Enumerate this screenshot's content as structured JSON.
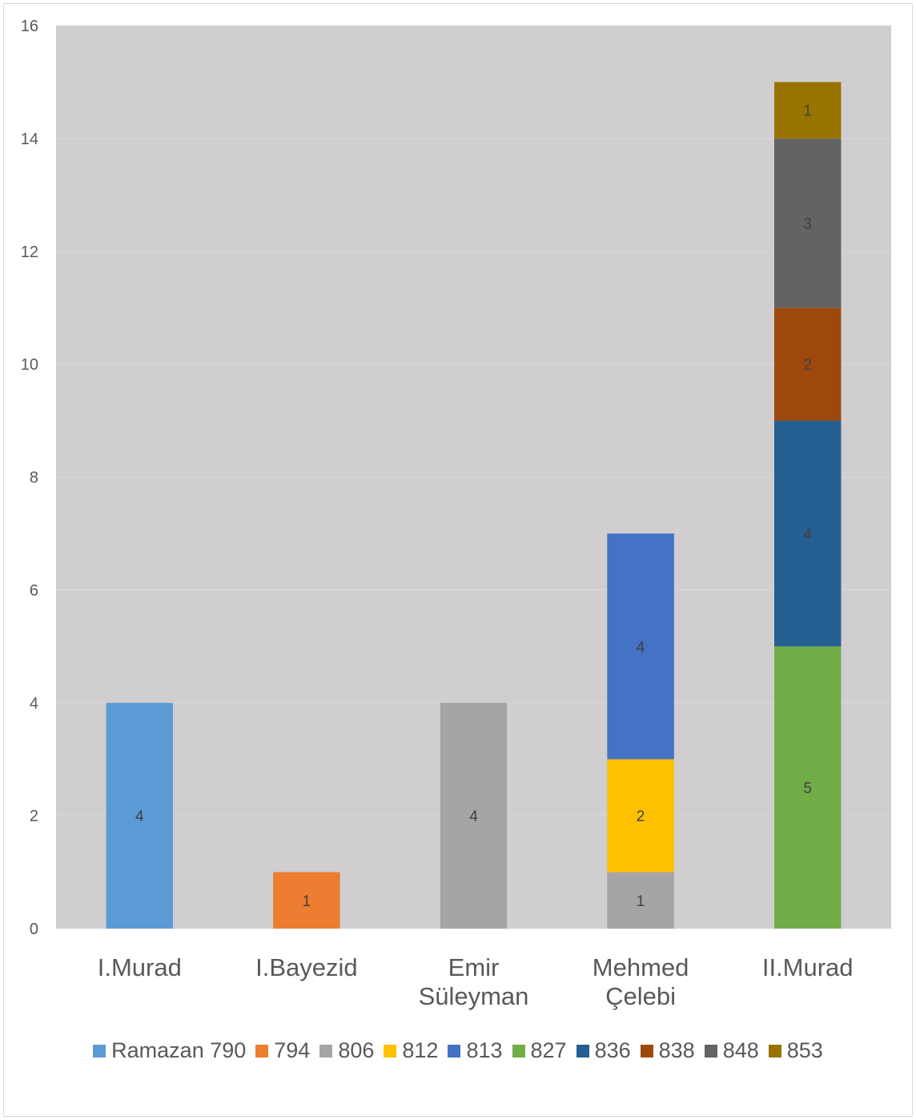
{
  "chart_data": {
    "type": "bar",
    "stacked": true,
    "categories": [
      "I.Murad",
      "I.Bayezid",
      "Emir Süleyman",
      "Mehmed Çelebi",
      "II.Murad"
    ],
    "category_lines": [
      [
        "I.Murad"
      ],
      [
        "I.Bayezid"
      ],
      [
        "Emir",
        "Süleyman"
      ],
      [
        "Mehmed",
        "Çelebi"
      ],
      [
        "II.Murad"
      ]
    ],
    "series": [
      {
        "name": "Ramazan 790",
        "color": "#5b9bd5",
        "values": [
          4,
          0,
          0,
          0,
          0
        ]
      },
      {
        "name": "794",
        "color": "#ed7d31",
        "values": [
          0,
          1,
          0,
          0,
          0
        ]
      },
      {
        "name": "806",
        "color": "#a5a5a5",
        "values": [
          0,
          0,
          4,
          1,
          0
        ]
      },
      {
        "name": "812",
        "color": "#ffc000",
        "values": [
          0,
          0,
          0,
          2,
          0
        ]
      },
      {
        "name": "813",
        "color": "#4472c4",
        "values": [
          0,
          0,
          0,
          4,
          0
        ]
      },
      {
        "name": "827",
        "color": "#70ad47",
        "values": [
          0,
          0,
          0,
          0,
          5
        ]
      },
      {
        "name": "836",
        "color": "#255e91",
        "values": [
          0,
          0,
          0,
          0,
          4
        ]
      },
      {
        "name": "838",
        "color": "#9e480e",
        "values": [
          0,
          0,
          0,
          0,
          2
        ]
      },
      {
        "name": "848",
        "color": "#636363",
        "values": [
          0,
          0,
          0,
          0,
          3
        ]
      },
      {
        "name": "853",
        "color": "#997300",
        "values": [
          0,
          0,
          0,
          0,
          1
        ]
      }
    ],
    "ylim": [
      0,
      16
    ],
    "yticks": [
      0,
      2,
      4,
      6,
      8,
      10,
      12,
      14,
      16
    ],
    "title": "",
    "xlabel": "",
    "ylabel": "",
    "grid": true,
    "plot_background": "#d0cece",
    "gridline_color": "#d9d9d9",
    "legend_position": "bottom",
    "data_labels": true
  }
}
